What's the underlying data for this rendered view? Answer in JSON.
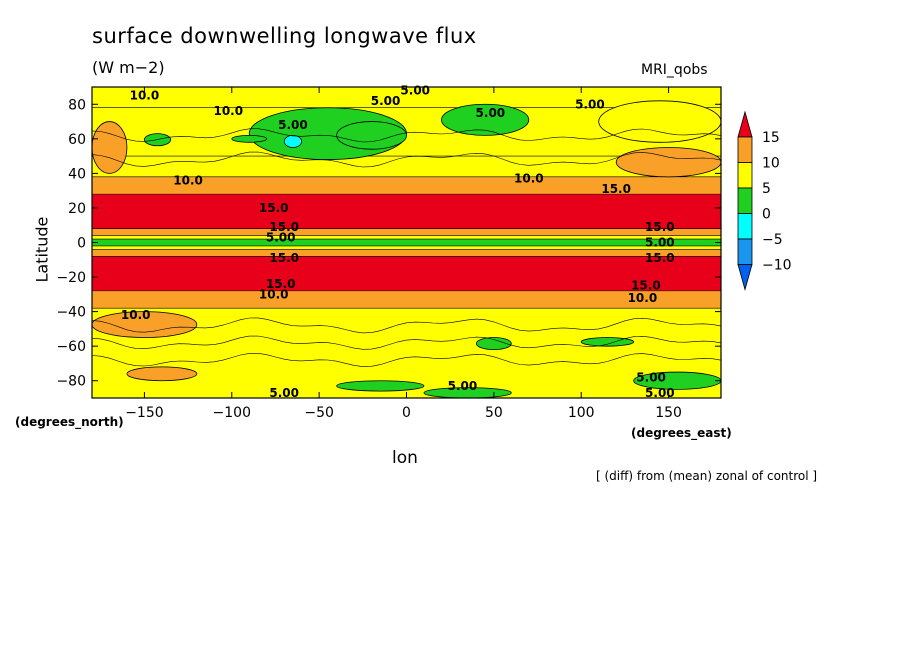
{
  "title": "surface downwelling longwave flux",
  "units": "(W m−2)",
  "model": "MRI_qobs",
  "note": "[ (diff) from (mean) zonal of control ]",
  "chart_data": {
    "type": "heatmap",
    "xlabel": "lon",
    "ylabel": "Latitude",
    "x_coord_label": "(degrees_east)",
    "y_coord_label": "(degrees_north)",
    "xlim": [
      -180,
      180
    ],
    "ylim": [
      -90,
      90
    ],
    "xticks": [
      "−150",
      "−100",
      "−50",
      "0",
      "50",
      "100",
      "150"
    ],
    "xtick_values": [
      -150,
      -100,
      -50,
      0,
      50,
      100,
      150
    ],
    "yticks": [
      "−80",
      "−60",
      "−40",
      "−20",
      "0",
      "20",
      "40",
      "60",
      "80"
    ],
    "ytick_values": [
      -80,
      -60,
      -40,
      -20,
      0,
      20,
      40,
      60,
      80
    ],
    "colorbar": {
      "labels": [
        "15",
        "10",
        "5",
        "0",
        "−5",
        "−10"
      ],
      "levels": [
        15,
        10,
        5,
        0,
        -5,
        -10
      ],
      "colors": [
        "#e8001a",
        "#f8a028",
        "#ffff00",
        "#20d020",
        "#00ffff",
        "#1a96f0",
        "#0060f0"
      ]
    },
    "bands": [
      {
        "from": 90,
        "to": 78,
        "value": 8
      },
      {
        "from": 78,
        "to": 50,
        "value": 6
      },
      {
        "from": 50,
        "to": 38,
        "value": 8
      },
      {
        "from": 38,
        "to": 28,
        "value": 11
      },
      {
        "from": 28,
        "to": 8,
        "value": 16
      },
      {
        "from": 8,
        "to": 4,
        "value": 11
      },
      {
        "from": 4,
        "to": 2,
        "value": 7
      },
      {
        "from": 2,
        "to": -2,
        "value": 2
      },
      {
        "from": -2,
        "to": -4,
        "value": 7
      },
      {
        "from": -4,
        "to": -8,
        "value": 11
      },
      {
        "from": -8,
        "to": -28,
        "value": 16
      },
      {
        "from": -28,
        "to": -38,
        "value": 11
      },
      {
        "from": -38,
        "to": -90,
        "value": 7
      }
    ],
    "patches": [
      {
        "lon_from": -90,
        "lon_to": 0,
        "lat_from": 48,
        "lat_to": 78,
        "value": 2
      },
      {
        "lon_from": -40,
        "lon_to": 0,
        "lat_from": 54,
        "lat_to": 70,
        "value": 2
      },
      {
        "lon_from": -70,
        "lon_to": -60,
        "lat_from": 55,
        "lat_to": 62,
        "value": -2
      },
      {
        "lon_from": 20,
        "lon_to": 70,
        "lat_from": 62,
        "lat_to": 80,
        "value": 2
      },
      {
        "lon_from": 110,
        "lon_to": 180,
        "lat_from": 58,
        "lat_to": 82,
        "value": 8
      },
      {
        "lon_from": -150,
        "lon_to": -135,
        "lat_from": 56,
        "lat_to": 63,
        "value": 2
      },
      {
        "lon_from": -100,
        "lon_to": -80,
        "lat_from": 58,
        "lat_to": 62,
        "value": 2
      },
      {
        "lon_from": -180,
        "lon_to": -160,
        "lat_from": 40,
        "lat_to": 70,
        "value": 11
      },
      {
        "lon_from": 120,
        "lon_to": 180,
        "lat_from": 38,
        "lat_to": 55,
        "value": 11
      },
      {
        "lon_from": 40,
        "lon_to": 60,
        "lat_from": -55,
        "lat_to": -62,
        "value": 2
      },
      {
        "lon_from": 100,
        "lon_to": 130,
        "lat_from": -55,
        "lat_to": -60,
        "value": 2
      },
      {
        "lon_from": -180,
        "lon_to": -120,
        "lat_from": -40,
        "lat_to": -55,
        "value": 11
      },
      {
        "lon_from": -40,
        "lon_to": 10,
        "lat_from": -80,
        "lat_to": -86,
        "value": 2
      },
      {
        "lon_from": 130,
        "lon_to": 180,
        "lat_from": -75,
        "lat_to": -85,
        "value": 2
      },
      {
        "lon_from": -160,
        "lon_to": -120,
        "lat_from": -72,
        "lat_to": -80,
        "value": 11
      },
      {
        "lon_from": 10,
        "lon_to": 60,
        "lat_from": -84,
        "lat_to": -90,
        "value": 2
      }
    ],
    "contour_labels": [
      {
        "text": "10.0",
        "lon": -150,
        "lat": 85
      },
      {
        "text": "10.0",
        "lon": -102,
        "lat": 76
      },
      {
        "text": "5.00",
        "lon": -65,
        "lat": 68
      },
      {
        "text": "5.00",
        "lon": -12,
        "lat": 82
      },
      {
        "text": "5.00",
        "lon": 5,
        "lat": 88
      },
      {
        "text": "5.00",
        "lon": 48,
        "lat": 75
      },
      {
        "text": "5.00",
        "lon": 105,
        "lat": 80
      },
      {
        "text": "10.0",
        "lon": -125,
        "lat": 36
      },
      {
        "text": "10.0",
        "lon": 70,
        "lat": 37
      },
      {
        "text": "15.0",
        "lon": 120,
        "lat": 31
      },
      {
        "text": "15.0",
        "lon": -76,
        "lat": 20
      },
      {
        "text": "15.0",
        "lon": -70,
        "lat": 9
      },
      {
        "text": "15.0",
        "lon": 145,
        "lat": 9
      },
      {
        "text": "5.00",
        "lon": -72,
        "lat": 3
      },
      {
        "text": "5.00",
        "lon": 145,
        "lat": 0
      },
      {
        "text": "15.0",
        "lon": -70,
        "lat": -9
      },
      {
        "text": "15.0",
        "lon": 145,
        "lat": -9
      },
      {
        "text": "15.0",
        "lon": -72,
        "lat": -24
      },
      {
        "text": "10.0",
        "lon": -76,
        "lat": -30
      },
      {
        "text": "15.0",
        "lon": 137,
        "lat": -25
      },
      {
        "text": "10.0",
        "lon": 135,
        "lat": -32
      },
      {
        "text": "10.0",
        "lon": -155,
        "lat": -42
      },
      {
        "text": "5.00",
        "lon": 32,
        "lat": -83
      },
      {
        "text": "5.00",
        "lon": 140,
        "lat": -78
      },
      {
        "text": "5.00",
        "lon": -70,
        "lat": -87
      },
      {
        "text": "5.00",
        "lon": 145,
        "lat": -87
      }
    ]
  }
}
